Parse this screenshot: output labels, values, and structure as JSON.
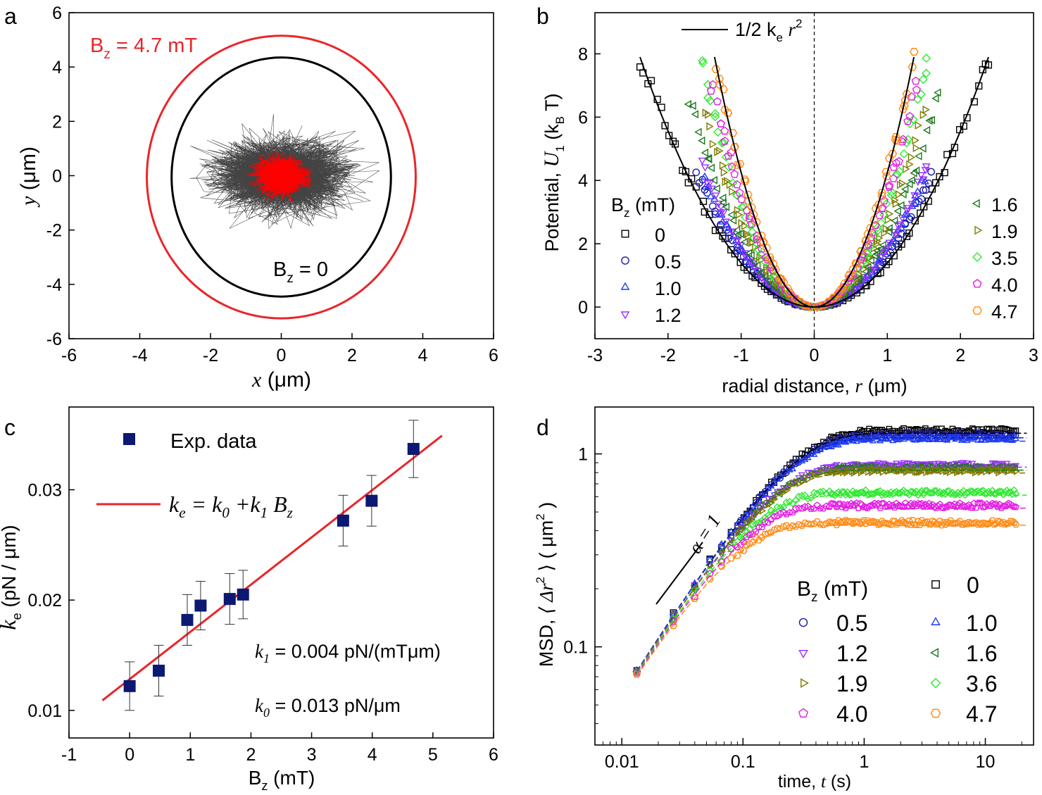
{
  "chart_data": [
    {
      "panel": "a",
      "type": "scatter",
      "xlabel_var": "x",
      "xlabel_unit": "(μm)",
      "ylabel_var": "y",
      "ylabel_unit": "(μm)",
      "xlim": [
        -6,
        6
      ],
      "ylim": [
        -6,
        6
      ],
      "x_ticks": [
        -6,
        -4,
        -2,
        0,
        2,
        4,
        6
      ],
      "y_ticks": [
        -6,
        -4,
        -2,
        0,
        2,
        4,
        6
      ],
      "outer_boundary": {
        "label_main": "B",
        "label_sub": "z",
        "label_rest": " = 4.7 mT",
        "rx": 3.8,
        "ry": 5.2,
        "cy": -0.05,
        "color": "#e8262b"
      },
      "inner_boundary": {
        "label_main": "B",
        "label_sub": "z",
        "label_rest": " = 0",
        "rx": 3.1,
        "ry": 4.4,
        "cy": -0.05,
        "color": "#000000"
      },
      "trajectories": [
        {
          "name": "Bz = 0",
          "color": "#222222",
          "spread": 0.75
        },
        {
          "name": "Bz = 4.7 mT",
          "color": "#ff0000",
          "spread": 0.3
        }
      ]
    },
    {
      "panel": "b",
      "type": "scatter",
      "xlabel": "radial distance, ",
      "xlabel_var": "r",
      "xlabel_unit": " (μm)",
      "ylabel_prefix": "Potential, ",
      "ylabel_var": "U",
      "ylabel_sub": "1",
      "ylabel_unit": " (k",
      "ylabel_unit_sub": "B",
      "ylabel_unit_end": " T)",
      "xlim": [
        -3,
        3
      ],
      "ylim": [
        -1,
        9.3
      ],
      "x_ticks": [
        -3,
        -2,
        -1,
        0,
        1,
        2,
        3
      ],
      "y_ticks": [
        0,
        2,
        4,
        6,
        8
      ],
      "fit_label": "1/2 k",
      "fit_label_sub": "e",
      "fit_label_r": "r",
      "fit_label_sup": "2",
      "legend_title": "B",
      "legend_title_sub": "z",
      "legend_title_unit": " (mT)",
      "fits": [
        {
          "k": 2.78
        },
        {
          "k": 8.5
        }
      ],
      "series": [
        {
          "name": "0",
          "marker": "square",
          "color": "#000000",
          "k": 2.78,
          "rmax": 2.4
        },
        {
          "name": "0.5",
          "marker": "circle",
          "color": "#1a1aa8",
          "k": 3.3,
          "rmax": 1.6
        },
        {
          "name": "1.0",
          "marker": "triangle-up",
          "color": "#1e3df0",
          "k": 3.6,
          "rmax": 1.5
        },
        {
          "name": "1.2",
          "marker": "triangle-down",
          "color": "#9b30ff",
          "k": 3.8,
          "rmax": 1.55
        },
        {
          "name": "1.6",
          "marker": "triangle-left",
          "color": "#1d7a1d",
          "k": 4.5,
          "rmax": 1.7
        },
        {
          "name": "1.9",
          "marker": "triangle-right",
          "color": "#7f7a00",
          "k": 5.5,
          "rmax": 1.5
        },
        {
          "name": "3.5",
          "marker": "diamond",
          "color": "#30e830",
          "k": 6.5,
          "rmax": 1.55
        },
        {
          "name": "4.0",
          "marker": "pentagon",
          "color": "#e21ee2",
          "k": 7.2,
          "rmax": 1.4
        },
        {
          "name": "4.7",
          "marker": "hexagon",
          "color": "#ff8a14",
          "k": 8.5,
          "rmax": 1.35
        }
      ]
    },
    {
      "panel": "c",
      "type": "scatter",
      "xlabel": "B",
      "xlabel_sub": "z",
      "xlabel_unit": " (mT)",
      "ylabel_var": "k",
      "ylabel_sub": "e",
      "ylabel_unit": " (pN / μm)",
      "xlim": [
        -1,
        6
      ],
      "ylim": [
        0.0075,
        0.0375
      ],
      "x_ticks": [
        -1,
        0,
        1,
        2,
        3,
        4,
        5,
        6
      ],
      "y_ticks": [
        0.01,
        0.02,
        0.03
      ],
      "y_tick_labels": [
        "0.01",
        "0.02",
        "0.03"
      ],
      "legend_data": "Exp. data",
      "legend_fit": "k_e = k_0 + k_1 B_z",
      "k1_label": "k",
      "k1_sub": "1",
      "k1_text": " = 0.004 pN/(mTμm)",
      "k0_label": "k",
      "k0_sub": "0",
      "k0_text": " = 0.013 pN/μm",
      "marker_color": "#0c1872",
      "fit_color": "#e8262b",
      "fit_line": {
        "x": [
          -0.45,
          5.15
        ],
        "y": [
          0.0109,
          0.0349
        ]
      },
      "points": [
        {
          "x": 0.0,
          "y": 0.0122,
          "err": 0.0022
        },
        {
          "x": 0.48,
          "y": 0.0136,
          "err": 0.0023
        },
        {
          "x": 0.95,
          "y": 0.0182,
          "err": 0.0023
        },
        {
          "x": 1.17,
          "y": 0.0195,
          "err": 0.0022
        },
        {
          "x": 1.65,
          "y": 0.0201,
          "err": 0.0023
        },
        {
          "x": 1.87,
          "y": 0.0205,
          "err": 0.0022
        },
        {
          "x": 3.52,
          "y": 0.0272,
          "err": 0.0023
        },
        {
          "x": 3.99,
          "y": 0.029,
          "err": 0.0023
        },
        {
          "x": 4.68,
          "y": 0.0337,
          "err": 0.0026
        }
      ]
    },
    {
      "panel": "d",
      "type": "line",
      "scale": "log-log",
      "xlabel": "time, ",
      "xlabel_var": "t",
      "xlabel_unit": " (s)",
      "ylabel": "MSD, ",
      "ylabel_var": "⟨ Δr",
      "ylabel_sup": "2",
      "ylabel_end": " ⟩ ( μm",
      "ylabel_sup2": "2",
      "ylabel_close": " )",
      "xlim": [
        0.006,
        25
      ],
      "ylim": [
        0.031,
        1.75
      ],
      "x_ticks": [
        0.01,
        0.1,
        1,
        10
      ],
      "x_tick_labels": [
        "0.01",
        "0.1",
        "1",
        "10"
      ],
      "y_ticks": [
        0.1,
        1
      ],
      "y_tick_labels": [
        "0.1",
        "1"
      ],
      "slope_label": "α = 1",
      "legend_title": "B",
      "legend_title_sub": "z",
      "legend_title_unit": " (mT)",
      "D": 1.45,
      "series": [
        {
          "name": "0",
          "marker": "square",
          "color": "#000000",
          "plateau": 1.32
        },
        {
          "name": "0.5",
          "marker": "circle",
          "color": "#1a1aa8",
          "plateau": 1.25
        },
        {
          "name": "1.0",
          "marker": "triangle-up",
          "color": "#1e3df0",
          "plateau": 1.2
        },
        {
          "name": "1.2",
          "marker": "triangle-down",
          "color": "#9b30ff",
          "plateau": 0.88
        },
        {
          "name": "1.6",
          "marker": "triangle-left",
          "color": "#1d7a1d",
          "plateau": 0.85
        },
        {
          "name": "1.9",
          "marker": "triangle-right",
          "color": "#7f7a00",
          "plateau": 0.82
        },
        {
          "name": "3.6",
          "marker": "diamond",
          "color": "#30e830",
          "plateau": 0.63
        },
        {
          "name": "4.0",
          "marker": "pentagon",
          "color": "#e21ee2",
          "plateau": 0.54
        },
        {
          "name": "4.7",
          "marker": "hexagon",
          "color": "#ff8a14",
          "plateau": 0.44
        }
      ]
    }
  ],
  "labels": {
    "a": "a",
    "b": "b",
    "c": "c",
    "d": "d"
  }
}
